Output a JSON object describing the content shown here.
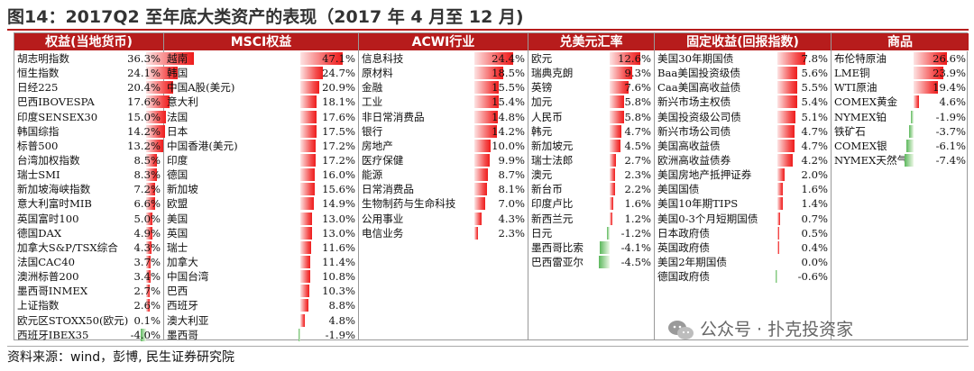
{
  "title": "图14：2017Q2 至年底大类资产的表现（2017 年 4 月至 12 月)",
  "source": "资料来源：wind，彭博, 民生证券研究院",
  "watermark": "公众号 · 扑克投资家",
  "colors": {
    "header_bg": "#b71c1c",
    "positive": "#ee1c1c",
    "negative": "#5cb85c"
  },
  "chart_data": {
    "type": "table",
    "unit": "%",
    "panels": [
      {
        "title": "权益(当地货币)",
        "rows": [
          {
            "name": "胡志明指数",
            "value": 36.3
          },
          {
            "name": "恒生指数",
            "value": 24.1
          },
          {
            "name": "日经225",
            "value": 20.4
          },
          {
            "name": "巴西IBOVESPA",
            "value": 17.6
          },
          {
            "name": "印度SENSEX30",
            "value": 15.0
          },
          {
            "name": "韩国综指",
            "value": 14.2
          },
          {
            "name": "标普500",
            "value": 13.2
          },
          {
            "name": "台湾加权指数",
            "value": 8.5
          },
          {
            "name": "瑞士SMI",
            "value": 8.3
          },
          {
            "name": "新加坡海峡指数",
            "value": 7.2
          },
          {
            "name": "意大利富时MIB",
            "value": 6.6
          },
          {
            "name": "英国富时100",
            "value": 5.0
          },
          {
            "name": "德国DAX",
            "value": 4.9
          },
          {
            "name": "加拿大S&P/TSX综合",
            "value": 4.3
          },
          {
            "name": "法国CAC40",
            "value": 3.7
          },
          {
            "name": "澳洲标普200",
            "value": 3.4
          },
          {
            "name": "墨西哥INMEX",
            "value": 2.7
          },
          {
            "name": "上证指数",
            "value": 2.6
          },
          {
            "name": "欧元区STOXX50(欧元)",
            "value": 0.1
          },
          {
            "name": "西班牙IBEX35",
            "value": -4.0
          }
        ]
      },
      {
        "title": "MSCI权益",
        "rows": [
          {
            "name": "越南",
            "value": 47.1
          },
          {
            "name": "韩国",
            "value": 24.7
          },
          {
            "name": "中国A股(美元)",
            "value": 20.9
          },
          {
            "name": "意大利",
            "value": 18.1
          },
          {
            "name": "法国",
            "value": 17.6
          },
          {
            "name": "日本",
            "value": 17.5
          },
          {
            "name": "中国香港(美元)",
            "value": 17.2
          },
          {
            "name": "印度",
            "value": 17.2
          },
          {
            "name": "德国",
            "value": 16.0
          },
          {
            "name": "新加坡",
            "value": 15.6
          },
          {
            "name": "欧盟",
            "value": 14.9
          },
          {
            "name": "美国",
            "value": 13.0
          },
          {
            "name": "英国",
            "value": 13.0
          },
          {
            "name": "瑞士",
            "value": 11.6
          },
          {
            "name": "加拿大",
            "value": 11.4
          },
          {
            "name": "中国台湾",
            "value": 10.8
          },
          {
            "name": "巴西",
            "value": 10.3
          },
          {
            "name": "西班牙",
            "value": 8.8
          },
          {
            "name": "澳大利亚",
            "value": 4.8
          },
          {
            "name": "墨西哥",
            "value": -1.9
          }
        ]
      },
      {
        "title": "ACWI行业",
        "rows": [
          {
            "name": "信息科技",
            "value": 24.4
          },
          {
            "name": "原材料",
            "value": 18.5
          },
          {
            "name": "金融",
            "value": 15.5
          },
          {
            "name": "工业",
            "value": 15.4
          },
          {
            "name": "非日常消费品",
            "value": 14.8
          },
          {
            "name": "银行",
            "value": 14.2
          },
          {
            "name": "房地产",
            "value": 10.0
          },
          {
            "name": "医疗保健",
            "value": 9.9
          },
          {
            "name": "能源",
            "value": 8.7
          },
          {
            "name": "日常消费品",
            "value": 8.1
          },
          {
            "name": "生物制药与生命科技",
            "value": 7.0
          },
          {
            "name": "公用事业",
            "value": 4.3
          },
          {
            "name": "电信业务",
            "value": 2.3
          }
        ]
      },
      {
        "title": "兑美元汇率",
        "rows": [
          {
            "name": "欧元",
            "value": 12.6
          },
          {
            "name": "瑞典克朗",
            "value": 9.3
          },
          {
            "name": "英镑",
            "value": 7.6
          },
          {
            "name": "加元",
            "value": 5.8
          },
          {
            "name": "人民币",
            "value": 5.8
          },
          {
            "name": "韩元",
            "value": 4.7
          },
          {
            "name": "新加坡元",
            "value": 4.5
          },
          {
            "name": "瑞士法郎",
            "value": 2.7
          },
          {
            "name": "澳元",
            "value": 2.3
          },
          {
            "name": "新台币",
            "value": 2.2
          },
          {
            "name": "印度卢比",
            "value": 1.6
          },
          {
            "name": "新西兰元",
            "value": 1.2
          },
          {
            "name": "日元",
            "value": -1.2
          },
          {
            "name": "墨西哥比索",
            "value": -4.1
          },
          {
            "name": "巴西雷亚尔",
            "value": -4.5
          }
        ]
      },
      {
        "title": "固定收益(回报指数)",
        "rows": [
          {
            "name": "美国30年期国债",
            "value": 7.8
          },
          {
            "name": "Baa美国投资级债",
            "value": 5.6
          },
          {
            "name": "Caa美国高收益债",
            "value": 5.5
          },
          {
            "name": "新兴市场主权债",
            "value": 5.4
          },
          {
            "name": "美国投资级公司债",
            "value": 5.1
          },
          {
            "name": "新兴市场公司债",
            "value": 4.7
          },
          {
            "name": "美国高收益债",
            "value": 4.7
          },
          {
            "name": "欧洲高收益债券",
            "value": 4.2
          },
          {
            "name": "美国房地产抵押证券",
            "value": 2.0
          },
          {
            "name": "美国国债",
            "value": 1.6
          },
          {
            "name": "美国10年期TIPS",
            "value": 1.4
          },
          {
            "name": "美国0-3个月短期国债",
            "value": 0.7
          },
          {
            "name": "日本政府债",
            "value": 0.5
          },
          {
            "name": "英国政府债",
            "value": 0.4
          },
          {
            "name": "美国2年期国债",
            "value": 0.0
          },
          {
            "name": "德国政府债",
            "value": -0.6
          }
        ]
      },
      {
        "title": "商品",
        "rows": [
          {
            "name": "布伦特原油",
            "value": 26.6
          },
          {
            "name": "LME铜",
            "value": 23.9
          },
          {
            "name": "WTI原油",
            "value": 19.4
          },
          {
            "name": "COMEX黄金",
            "value": 4.6
          },
          {
            "name": "NYMEX铂",
            "value": -1.9
          },
          {
            "name": "铁矿石",
            "value": -3.7
          },
          {
            "name": "COMEX银",
            "value": -6.1
          },
          {
            "name": "NYMEX天然气",
            "value": -7.4
          }
        ]
      }
    ]
  }
}
